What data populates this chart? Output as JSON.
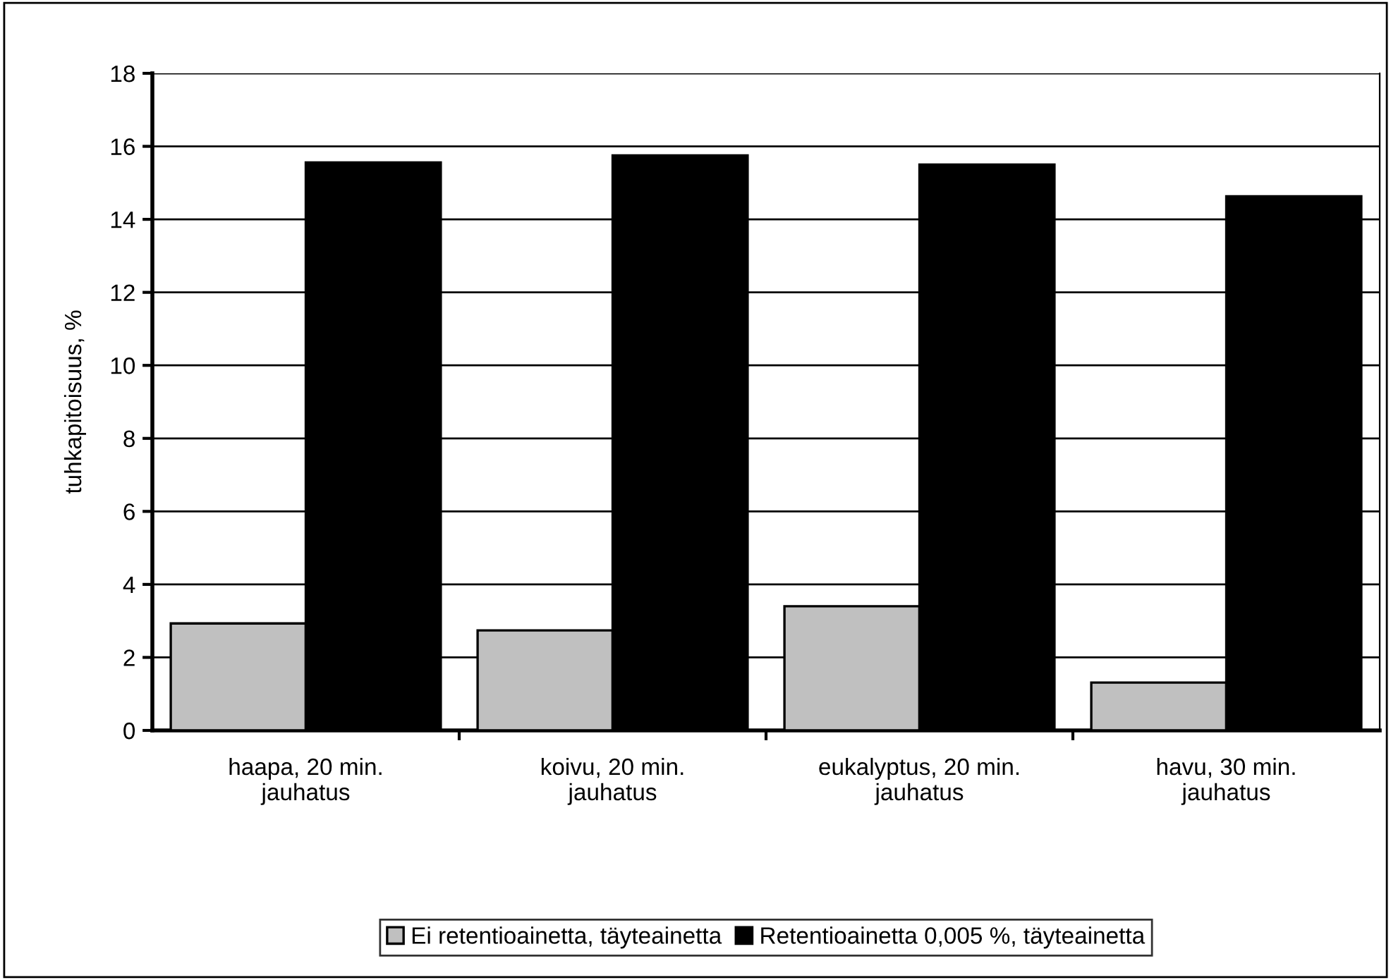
{
  "chart_data": {
    "type": "bar",
    "ylabel": "tuhkapitoisuus, %",
    "categories": [
      "haapa, 20 min.\njauhatus",
      "koivu, 20 min.\njauhatus",
      "eukalyptus, 20 min.\njauhatus",
      "havu, 30 min.\njauhatus"
    ],
    "series": [
      {
        "name": "Ei retentioainetta, täyteainetta",
        "color": "#c0c0c0",
        "values": [
          2.93,
          2.74,
          3.4,
          1.31
        ]
      },
      {
        "name": "Retentioainetta 0,005 %, täyteainetta",
        "color": "#000000",
        "values": [
          15.56,
          15.75,
          15.5,
          14.63
        ]
      }
    ],
    "ylim": [
      0,
      18
    ],
    "yticks": [
      0,
      2,
      4,
      6,
      8,
      10,
      12,
      14,
      16,
      18
    ],
    "grid": "y",
    "legend": "bottom"
  }
}
